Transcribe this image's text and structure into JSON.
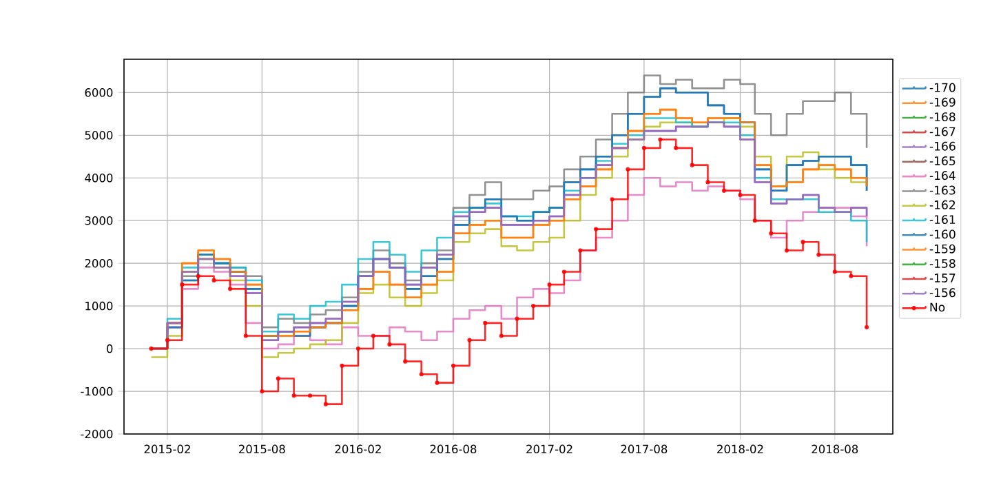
{
  "chart_data": {
    "type": "step",
    "grid": true,
    "legend": "right",
    "marker": "none",
    "xlim": [
      "2014-11-10",
      "2018-11-20"
    ],
    "ylim": [
      -2000,
      6780
    ],
    "xticks": [
      "2015-02",
      "2015-08",
      "2016-02",
      "2016-08",
      "2017-02",
      "2017-08",
      "2018-02",
      "2018-08"
    ],
    "yticks": [
      -2000,
      -1000,
      0,
      1000,
      2000,
      3000,
      4000,
      5000,
      6000
    ],
    "x": [
      "2015-01",
      "2015-02",
      "2015-03",
      "2015-04",
      "2015-05",
      "2015-06",
      "2015-07",
      "2015-08",
      "2015-09",
      "2015-10",
      "2015-11",
      "2015-12",
      "2016-01",
      "2016-02",
      "2016-03",
      "2016-04",
      "2016-05",
      "2016-06",
      "2016-07",
      "2016-08",
      "2016-09",
      "2016-10",
      "2016-11",
      "2016-12",
      "2017-01",
      "2017-02",
      "2017-03",
      "2017-04",
      "2017-05",
      "2017-06",
      "2017-07",
      "2017-08",
      "2017-09",
      "2017-10",
      "2017-11",
      "2017-12",
      "2018-01",
      "2018-02",
      "2018-03",
      "2018-04",
      "2018-05",
      "2018-06",
      "2018-07",
      "2018-08",
      "2018-09",
      "2018-10"
    ],
    "series": [
      {
        "name": "-170",
        "color": "#1f77b4",
        "values": [
          0,
          500,
          1600,
          2200,
          2000,
          1800,
          1400,
          300,
          400,
          300,
          500,
          600,
          1000,
          1700,
          2100,
          1900,
          1400,
          1700,
          2100,
          2900,
          3300,
          3500,
          3100,
          3000,
          3200,
          3300,
          3900,
          4200,
          4500,
          5000,
          5500,
          5900,
          6100,
          6000,
          6000,
          5700,
          5500,
          5300,
          4200,
          3700,
          4300,
          4400,
          4500,
          4500,
          4300,
          3700
        ]
      },
      {
        "name": "-169",
        "color": "#ff7f0e",
        "values": [
          0,
          600,
          2000,
          2300,
          2100,
          1800,
          1500,
          300,
          300,
          400,
          500,
          600,
          900,
          1400,
          1800,
          1500,
          1200,
          1500,
          1800,
          2700,
          2900,
          3000,
          2600,
          2600,
          2900,
          3000,
          3500,
          3800,
          4200,
          4700,
          5100,
          5500,
          5600,
          5400,
          5300,
          5400,
          5400,
          5300,
          4300,
          3800,
          3900,
          4200,
          4300,
          4200,
          4000,
          3800
        ]
      },
      {
        "name": "-168",
        "color": "#2ca02c",
        "values": [
          null,
          null,
          null,
          null,
          null,
          null,
          null,
          null,
          null,
          null,
          null,
          null,
          null,
          null,
          null,
          null,
          null,
          null,
          null,
          null,
          null,
          null,
          null,
          null,
          null,
          null,
          null,
          null,
          null,
          null,
          null,
          null,
          null,
          null,
          null,
          null,
          null,
          null,
          null,
          null,
          null,
          null,
          null,
          null,
          null,
          null
        ]
      },
      {
        "name": "-167",
        "color": "#d62728",
        "values": [
          null,
          null,
          null,
          null,
          null,
          null,
          null,
          null,
          null,
          null,
          null,
          null,
          null,
          null,
          null,
          null,
          null,
          null,
          null,
          null,
          null,
          null,
          null,
          null,
          null,
          null,
          null,
          null,
          null,
          null,
          null,
          null,
          null,
          null,
          null,
          null,
          null,
          null,
          null,
          null,
          null,
          null,
          null,
          null,
          null,
          null
        ]
      },
      {
        "name": "-166",
        "color": "#9467bd",
        "values": [
          0,
          600,
          1800,
          2100,
          1900,
          1700,
          1300,
          200,
          400,
          500,
          600,
          700,
          1100,
          1700,
          2100,
          1900,
          1500,
          1900,
          2200,
          3100,
          3200,
          3300,
          2900,
          2900,
          3000,
          3100,
          3600,
          4000,
          4300,
          4700,
          4900,
          5100,
          5100,
          5200,
          5200,
          5300,
          5200,
          4900,
          3900,
          3400,
          3500,
          3600,
          3300,
          3200,
          3300,
          3100
        ]
      },
      {
        "name": "-165",
        "color": "#8c564b",
        "values": [
          null,
          null,
          null,
          null,
          null,
          null,
          null,
          null,
          null,
          null,
          null,
          null,
          null,
          null,
          null,
          null,
          null,
          null,
          null,
          null,
          null,
          null,
          null,
          null,
          null,
          null,
          null,
          null,
          null,
          null,
          null,
          null,
          null,
          null,
          null,
          null,
          null,
          null,
          null,
          null,
          null,
          null,
          null,
          null,
          null,
          null
        ]
      },
      {
        "name": "-164",
        "color": "#e377c2",
        "values": [
          0,
          500,
          1400,
          1900,
          1800,
          1500,
          600,
          0,
          100,
          300,
          200,
          100,
          500,
          300,
          300,
          500,
          400,
          200,
          400,
          700,
          900,
          1000,
          700,
          1200,
          1400,
          1300,
          1600,
          2300,
          2600,
          3000,
          3600,
          4000,
          3800,
          3900,
          3700,
          3800,
          3700,
          3500,
          3000,
          2600,
          3000,
          3200,
          3300,
          3300,
          3100,
          2400
        ]
      },
      {
        "name": "-163",
        "color": "#7f7f7f",
        "values": [
          0,
          600,
          1700,
          2200,
          2000,
          1900,
          1700,
          500,
          700,
          600,
          800,
          900,
          1200,
          1800,
          2300,
          2000,
          1600,
          2000,
          2300,
          3300,
          3600,
          3900,
          3500,
          3500,
          3700,
          3800,
          4200,
          4500,
          4900,
          5500,
          6000,
          6400,
          6200,
          6300,
          6100,
          6100,
          6300,
          6200,
          5500,
          5000,
          5500,
          5800,
          5800,
          6000,
          5500,
          4700
        ]
      },
      {
        "name": "-162",
        "color": "#bcbd22",
        "values": [
          -200,
          300,
          1800,
          2100,
          1900,
          1600,
          1000,
          -200,
          -100,
          0,
          100,
          200,
          600,
          1300,
          1500,
          1200,
          1000,
          1300,
          1600,
          2500,
          2700,
          2800,
          2400,
          2300,
          2500,
          2600,
          3000,
          3600,
          4000,
          4500,
          4900,
          5200,
          5300,
          5300,
          5200,
          5300,
          5400,
          5200,
          4500,
          3800,
          4500,
          4600,
          4200,
          4000,
          3900,
          3800
        ]
      },
      {
        "name": "-161",
        "color": "#17becf",
        "values": [
          0,
          700,
          1900,
          2200,
          2000,
          1900,
          1600,
          400,
          800,
          700,
          1000,
          1100,
          1500,
          2100,
          2500,
          2200,
          1800,
          2300,
          2600,
          3200,
          3300,
          3400,
          3100,
          3100,
          3200,
          3300,
          3700,
          4000,
          4400,
          4800,
          5000,
          5400,
          5400,
          5300,
          5200,
          5300,
          5300,
          5000,
          4000,
          3500,
          3500,
          3500,
          3200,
          3200,
          3000,
          2500
        ]
      },
      {
        "name": "-160",
        "color": "#1f77b4",
        "values": [
          0,
          500,
          1600,
          2200,
          2000,
          1800,
          1400,
          300,
          400,
          300,
          500,
          600,
          1000,
          1700,
          2100,
          1900,
          1400,
          1700,
          2100,
          2900,
          3300,
          3500,
          3100,
          3000,
          3200,
          3300,
          3900,
          4200,
          4500,
          5000,
          5500,
          5900,
          6100,
          6000,
          6000,
          5700,
          5500,
          5300,
          4200,
          3700,
          4300,
          4400,
          4500,
          4500,
          4300,
          3700
        ]
      },
      {
        "name": "-159",
        "color": "#ff7f0e",
        "values": [
          0,
          600,
          2000,
          2300,
          2100,
          1800,
          1500,
          300,
          300,
          400,
          500,
          600,
          900,
          1400,
          1800,
          1500,
          1200,
          1500,
          1800,
          2700,
          2900,
          3000,
          2600,
          2600,
          2900,
          3000,
          3500,
          3800,
          4200,
          4700,
          5100,
          5500,
          5600,
          5400,
          5300,
          5400,
          5400,
          5300,
          4300,
          3800,
          3900,
          4200,
          4300,
          4200,
          4000,
          3800
        ]
      },
      {
        "name": "-158",
        "color": "#2ca02c",
        "values": [
          null,
          null,
          null,
          null,
          null,
          null,
          null,
          null,
          null,
          null,
          null,
          null,
          null,
          null,
          null,
          null,
          null,
          null,
          null,
          null,
          null,
          null,
          null,
          null,
          null,
          null,
          null,
          null,
          null,
          null,
          null,
          null,
          null,
          null,
          null,
          null,
          null,
          null,
          null,
          null,
          null,
          null,
          null,
          null,
          null,
          null
        ]
      },
      {
        "name": "-157",
        "color": "#d62728",
        "values": [
          null,
          null,
          null,
          null,
          null,
          null,
          null,
          null,
          null,
          null,
          null,
          null,
          null,
          null,
          null,
          null,
          null,
          null,
          null,
          null,
          null,
          null,
          null,
          null,
          null,
          null,
          null,
          null,
          null,
          null,
          null,
          null,
          null,
          null,
          null,
          null,
          null,
          null,
          null,
          null,
          null,
          null,
          null,
          null,
          null,
          null
        ]
      },
      {
        "name": "-156",
        "color": "#9467bd",
        "values": [
          0,
          600,
          1800,
          2100,
          1900,
          1700,
          1300,
          200,
          400,
          500,
          600,
          700,
          1100,
          1700,
          2100,
          1900,
          1500,
          1900,
          2200,
          3100,
          3200,
          3300,
          2900,
          2900,
          3000,
          3100,
          3600,
          4000,
          4300,
          4700,
          4900,
          5100,
          5100,
          5200,
          5200,
          5300,
          5200,
          4900,
          3900,
          3400,
          3500,
          3600,
          3300,
          3200,
          3300,
          3100
        ]
      },
      {
        "name": "No",
        "color": "#ff0000",
        "marker": "circle",
        "values": [
          0,
          200,
          1500,
          1700,
          1600,
          1400,
          300,
          -1000,
          -700,
          -1100,
          -1100,
          -1300,
          -400,
          0,
          300,
          100,
          -300,
          -600,
          -800,
          -400,
          200,
          600,
          300,
          700,
          1000,
          1500,
          1800,
          2300,
          2800,
          3500,
          4200,
          4700,
          4900,
          4700,
          4300,
          3900,
          3700,
          3600,
          3000,
          2700,
          2300,
          2500,
          2200,
          1800,
          1700,
          500
        ]
      }
    ]
  }
}
